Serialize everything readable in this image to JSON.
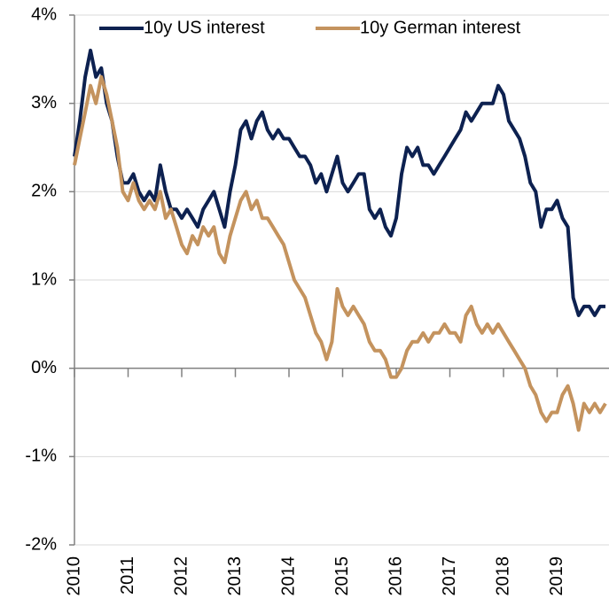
{
  "chart_data": {
    "type": "line",
    "x": [
      2010.0,
      2010.1,
      2010.2,
      2010.3,
      2010.4,
      2010.5,
      2010.6,
      2010.7,
      2010.8,
      2010.9,
      2011.0,
      2011.1,
      2011.2,
      2011.3,
      2011.4,
      2011.5,
      2011.6,
      2011.7,
      2011.8,
      2011.9,
      2012.0,
      2012.1,
      2012.2,
      2012.3,
      2012.4,
      2012.5,
      2012.6,
      2012.7,
      2012.8,
      2012.9,
      2013.0,
      2013.1,
      2013.2,
      2013.3,
      2013.4,
      2013.5,
      2013.6,
      2013.7,
      2013.8,
      2013.9,
      2014.0,
      2014.1,
      2014.2,
      2014.3,
      2014.4,
      2014.5,
      2014.6,
      2014.7,
      2014.8,
      2014.9,
      2015.0,
      2015.1,
      2015.2,
      2015.3,
      2015.4,
      2015.5,
      2015.6,
      2015.7,
      2015.8,
      2015.9,
      2016.0,
      2016.1,
      2016.2,
      2016.3,
      2016.4,
      2016.5,
      2016.6,
      2016.7,
      2016.8,
      2016.9,
      2017.0,
      2017.1,
      2017.2,
      2017.3,
      2017.4,
      2017.5,
      2017.6,
      2017.7,
      2017.8,
      2017.9,
      2018.0,
      2018.1,
      2018.2,
      2018.3,
      2018.4,
      2018.5,
      2018.6,
      2018.7,
      2018.8,
      2018.9,
      2019.0,
      2019.1,
      2019.2,
      2019.3,
      2019.4,
      2019.5,
      2019.6,
      2019.7,
      2019.8,
      2019.9
    ],
    "series": [
      {
        "name": "10y US interest",
        "color": "#0d2150",
        "values": [
          2.4,
          2.8,
          3.3,
          3.6,
          3.3,
          3.4,
          3.0,
          2.8,
          2.4,
          2.1,
          2.1,
          2.2,
          2.0,
          1.9,
          2.0,
          1.9,
          2.3,
          2.0,
          1.8,
          1.8,
          1.7,
          1.8,
          1.7,
          1.6,
          1.8,
          1.9,
          2.0,
          1.8,
          1.6,
          2.0,
          2.3,
          2.7,
          2.8,
          2.6,
          2.8,
          2.9,
          2.7,
          2.6,
          2.7,
          2.6,
          2.6,
          2.5,
          2.4,
          2.4,
          2.3,
          2.1,
          2.2,
          2.0,
          2.2,
          2.4,
          2.1,
          2.0,
          2.1,
          2.2,
          2.2,
          1.8,
          1.7,
          1.8,
          1.6,
          1.5,
          1.7,
          2.2,
          2.5,
          2.4,
          2.5,
          2.3,
          2.3,
          2.2,
          2.3,
          2.4,
          2.5,
          2.6,
          2.7,
          2.9,
          2.8,
          2.9,
          3.0,
          3.0,
          3.0,
          3.2,
          3.1,
          2.8,
          2.7,
          2.6,
          2.4,
          2.1,
          2.0,
          1.6,
          1.8,
          1.8,
          1.9,
          1.7,
          1.6,
          0.8,
          0.6,
          0.7,
          0.7,
          0.6,
          0.7,
          0.7
        ]
      },
      {
        "name": "10y German interest",
        "color": "#c4935e",
        "values": [
          2.3,
          2.6,
          2.9,
          3.2,
          3.0,
          3.3,
          3.1,
          2.8,
          2.5,
          2.0,
          1.9,
          2.1,
          1.9,
          1.8,
          1.9,
          1.8,
          2.0,
          1.7,
          1.8,
          1.6,
          1.4,
          1.3,
          1.5,
          1.4,
          1.6,
          1.5,
          1.6,
          1.3,
          1.2,
          1.5,
          1.7,
          1.9,
          2.0,
          1.8,
          1.9,
          1.7,
          1.7,
          1.6,
          1.5,
          1.4,
          1.2,
          1.0,
          0.9,
          0.8,
          0.6,
          0.4,
          0.3,
          0.1,
          0.3,
          0.9,
          0.7,
          0.6,
          0.7,
          0.6,
          0.5,
          0.3,
          0.2,
          0.2,
          0.1,
          -0.1,
          -0.1,
          0.0,
          0.2,
          0.3,
          0.3,
          0.4,
          0.3,
          0.4,
          0.4,
          0.5,
          0.4,
          0.4,
          0.3,
          0.6,
          0.7,
          0.5,
          0.4,
          0.5,
          0.4,
          0.5,
          0.4,
          0.3,
          0.2,
          0.1,
          0.0,
          -0.2,
          -0.3,
          -0.5,
          -0.6,
          -0.5,
          -0.5,
          -0.3,
          -0.2,
          -0.4,
          -0.7,
          -0.4,
          -0.5,
          -0.4,
          -0.5,
          -0.4
        ]
      }
    ],
    "xlim": [
      2010,
      2020
    ],
    "xticks": [
      2010,
      2011,
      2012,
      2013,
      2014,
      2015,
      2016,
      2017,
      2018,
      2019
    ],
    "ylim": [
      -2,
      4
    ],
    "yticks": [
      {
        "value": -2,
        "label": "-2%"
      },
      {
        "value": -1,
        "label": "-1%"
      },
      {
        "value": 0,
        "label": "0%"
      },
      {
        "value": 1,
        "label": "1%"
      },
      {
        "value": 2,
        "label": "2%"
      },
      {
        "value": 3,
        "label": "3%"
      },
      {
        "value": 4,
        "label": "4%"
      }
    ],
    "grid": true,
    "legend": "top"
  }
}
